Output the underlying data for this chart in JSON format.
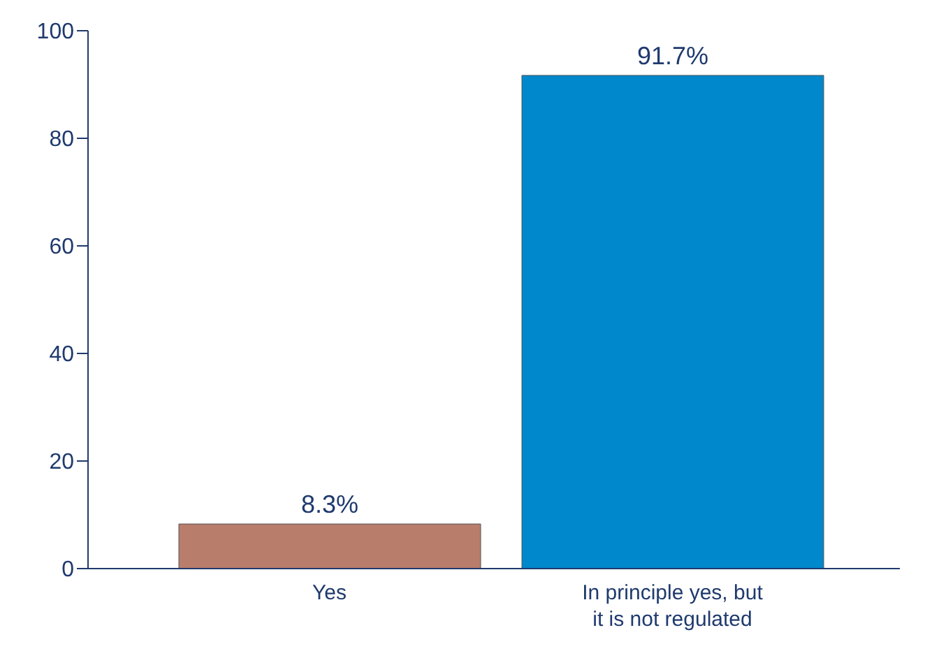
{
  "chart_data": {
    "type": "bar",
    "categories": [
      "Yes",
      "In principle yes, but it is not regulated"
    ],
    "values": [
      8.3,
      91.7
    ],
    "colors": [
      "#b97d6b",
      "#0088cc"
    ],
    "value_labels": [
      "8.3%",
      "91.7%"
    ],
    "ylim": [
      0,
      100
    ],
    "yticks": [
      0,
      20,
      40,
      60,
      80,
      100
    ],
    "grid": false,
    "legend": false
  }
}
